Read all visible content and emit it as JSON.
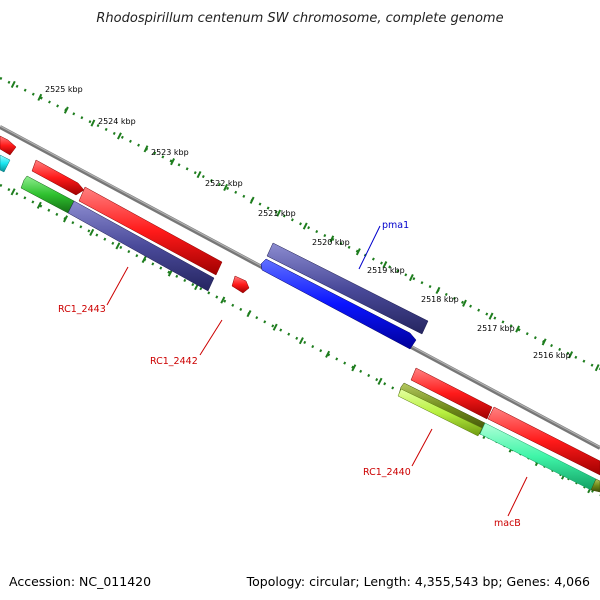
{
  "title": "Rhodospirillum centenum SW chromosome, complete genome",
  "footer": {
    "accession": "Accession: NC_011420",
    "summary": "Topology: circular; Length: 4,355,543 bp; Genes: 4,066"
  },
  "ticks": [
    "2525 kbp",
    "2524 kbp",
    "2523 kbp",
    "2522 kbp",
    "2521 kbp",
    "2520 kbp",
    "2519 kbp",
    "2518 kbp",
    "2517 kbp",
    "2516 kbp"
  ],
  "gene_labels": {
    "pma1": "pma1",
    "rc1_2443": "RC1_2443",
    "rc1_2442": "RC1_2442",
    "rc1_2440": "RC1_2440",
    "macb": "macB"
  },
  "colors": {
    "backbone": "#7f7f7f",
    "ruler": "#1e7d1e",
    "red_gene": "#ff1a1a",
    "navy_gene": "#4a4a9a",
    "blue_gene": "#0a14ff",
    "green_gene": "#2fc12f",
    "cyan_gene": "#19e6f0",
    "olive_gene": "#6f8a1a",
    "yellowgreen_gene": "#b8f040",
    "aqua_gene": "#3ff5a8",
    "pma1_label": "#0000cc",
    "rc_label": "#cc0000"
  }
}
